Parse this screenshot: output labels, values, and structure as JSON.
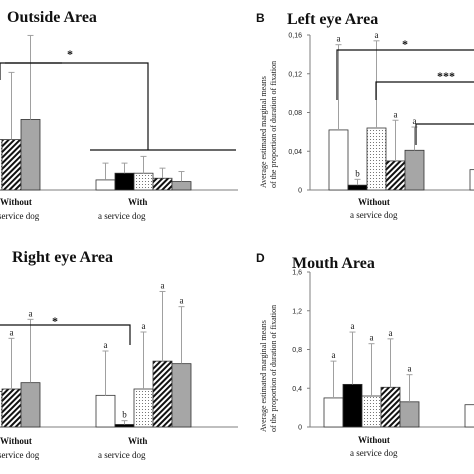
{
  "chart_data": [
    {
      "type": "bar",
      "panel": "",
      "title": "Outside Area",
      "groups": [
        {
          "label_top": "Without",
          "label_bottom": "a service dog",
          "values": [
            null,
            0.3,
            0.3,
            0.3,
            0.42
          ],
          "errors": [
            null,
            0.4,
            0.4,
            0.4,
            0.5
          ],
          "letters": []
        },
        {
          "label_top": "With",
          "label_bottom": "a service dog",
          "values": [
            0.06,
            0.1,
            0.1,
            0.07,
            0.05
          ],
          "errors": [
            0.1,
            0.06,
            0.1,
            0.06,
            0.06
          ],
          "letters": []
        }
      ],
      "ylim": [
        0,
        1.0
      ],
      "yticks": [],
      "ylabel": "",
      "significance": [
        {
          "text": "*"
        }
      ]
    },
    {
      "type": "bar",
      "panel": "B",
      "title": "Left eye Area",
      "groups": [
        {
          "label_top": "Without",
          "label_bottom": "a service dog",
          "values": [
            0.062,
            0.005,
            0.064,
            0.03,
            0.041
          ],
          "errors": [
            0.088,
            0.006,
            0.09,
            0.042,
            0.024
          ],
          "letters": [
            "a",
            "b",
            "a",
            "a",
            "a"
          ]
        },
        {
          "label_top": "",
          "label_bottom": "",
          "values": [
            0.021
          ],
          "errors": [
            null
          ],
          "letters": []
        }
      ],
      "ylim": [
        0,
        0.16
      ],
      "yticks": [
        "0",
        "0,04",
        "0,08",
        "0,12",
        "0,16"
      ],
      "ylabel": "Average estimated marginal means of the proportion of duration of fixation",
      "significance": [
        {
          "text": "*"
        },
        {
          "text": "***"
        }
      ]
    },
    {
      "type": "bar",
      "panel": "",
      "title": "Right eye Area",
      "groups": [
        {
          "label_top": "Without",
          "label_bottom": "a service dog",
          "values": [
            null,
            0.28,
            0.28,
            0.3,
            0.35
          ],
          "errors": [
            null,
            0.3,
            0.3,
            0.4,
            0.5
          ],
          "letters": [
            "ab",
            "ab",
            "a",
            "a"
          ]
        },
        {
          "label_top": "With",
          "label_bottom": "a service dog",
          "values": [
            0.25,
            0.02,
            0.3,
            0.52,
            0.5
          ],
          "errors": [
            0.35,
            0.03,
            0.45,
            0.55,
            0.45
          ],
          "letters": [
            "a",
            "b",
            "a",
            "a",
            "a"
          ]
        }
      ],
      "ylim": [
        0,
        1.2
      ],
      "yticks": [],
      "ylabel": "",
      "significance": [
        {
          "text": "*"
        }
      ]
    },
    {
      "type": "bar",
      "panel": "D",
      "title": "Mouth Area",
      "groups": [
        {
          "label_top": "Without",
          "label_bottom": "a service dog",
          "values": [
            0.3,
            0.44,
            0.32,
            0.41,
            0.26
          ],
          "errors": [
            0.38,
            0.54,
            0.54,
            0.5,
            0.28
          ],
          "letters": [
            "a",
            "a",
            "a",
            "a",
            "a"
          ]
        },
        {
          "label_top": "",
          "label_bottom": "",
          "values": [
            0.23
          ],
          "errors": [
            null
          ],
          "letters": []
        }
      ],
      "ylim": [
        0,
        1.6
      ],
      "yticks": [
        "0",
        "0,4",
        "0,8",
        "1,2",
        "1,6"
      ],
      "ylabel": "Average estimated marginal means of the proportion of duration of fixation",
      "significance": []
    }
  ],
  "colors": {
    "white": "#ffffff",
    "black": "#000000",
    "dotted": "#ffffff",
    "hatched": "#ffffff",
    "grey": "#a6a6a6",
    "error": "#a0a0a0",
    "axis": "#7f7f7f",
    "bracket": "#111111"
  }
}
